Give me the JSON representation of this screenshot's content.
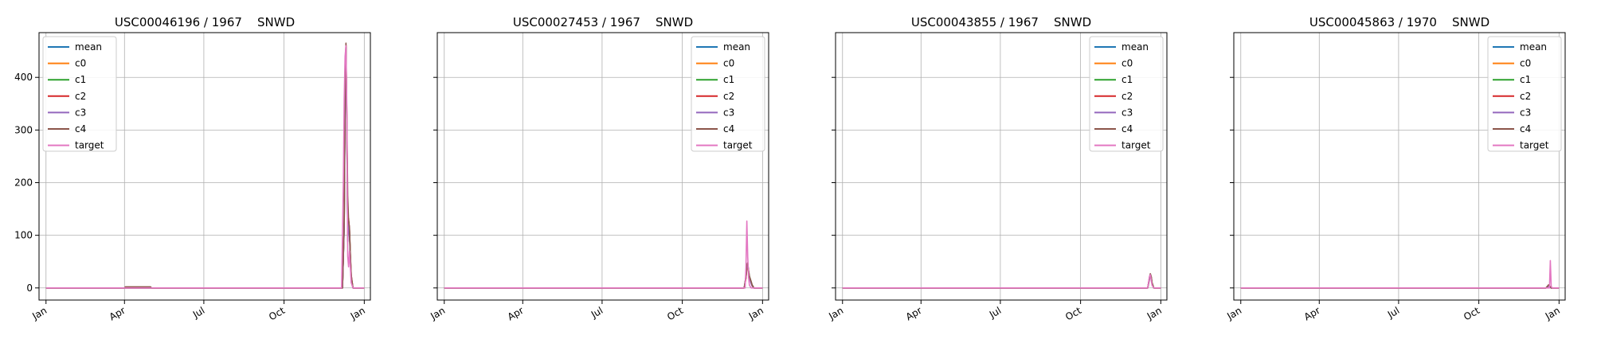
{
  "figure": {
    "legend_entries": [
      {
        "label": "mean",
        "color": "#1f77b4"
      },
      {
        "label": "c0",
        "color": "#ff7f0e"
      },
      {
        "label": "c1",
        "color": "#2ca02c"
      },
      {
        "label": "c2",
        "color": "#d62728"
      },
      {
        "label": "c3",
        "color": "#9467bd"
      },
      {
        "label": "c4",
        "color": "#8c564b"
      },
      {
        "label": "target",
        "color": "#e377c2"
      }
    ],
    "x_tick_labels": [
      "Jan",
      "Apr",
      "Jul",
      "Oct",
      "Jan"
    ],
    "y_tick_labels": [
      "0",
      "100",
      "200",
      "300",
      "400"
    ]
  },
  "chart_data": [
    {
      "type": "line",
      "title": "USC00046196 / 1967    SNWD",
      "x_unit": "day of year",
      "xlim": [
        -8,
        372
      ],
      "ylim": [
        -23,
        485
      ],
      "x_ticks": [
        0,
        90,
        181,
        273,
        365
      ],
      "y_ticks": [
        0,
        100,
        200,
        300,
        400
      ],
      "grid": true,
      "legend_position": "upper-left",
      "series": [
        {
          "name": "mean",
          "x": [
            0,
            340,
            342,
            343,
            344,
            345,
            346,
            347,
            348,
            349,
            350,
            352,
            355,
            365
          ],
          "y": [
            0,
            0,
            120,
            380,
            455,
            300,
            90,
            130,
            110,
            60,
            20,
            0,
            0,
            0
          ]
        },
        {
          "name": "c0",
          "x": [
            0,
            340,
            342,
            343,
            344,
            345,
            346,
            347,
            348,
            349,
            350,
            352,
            355,
            365
          ],
          "y": [
            0,
            0,
            125,
            385,
            460,
            310,
            95,
            128,
            105,
            58,
            18,
            0,
            0,
            0
          ]
        },
        {
          "name": "c1",
          "x": [
            0,
            340,
            342,
            343,
            344,
            345,
            346,
            347,
            348,
            349,
            350,
            352,
            355,
            365
          ],
          "y": [
            0,
            0,
            118,
            378,
            458,
            305,
            92,
            126,
            108,
            62,
            22,
            0,
            0,
            0
          ]
        },
        {
          "name": "c2",
          "x": [
            0,
            340,
            342,
            343,
            344,
            345,
            346,
            347,
            348,
            349,
            350,
            352,
            355,
            365
          ],
          "y": [
            0,
            0,
            122,
            382,
            462,
            315,
            100,
            132,
            112,
            64,
            24,
            0,
            0,
            0
          ]
        },
        {
          "name": "c3",
          "x": [
            0,
            340,
            342,
            343,
            344,
            345,
            346,
            347,
            348,
            349,
            350,
            352,
            355,
            365
          ],
          "y": [
            0,
            0,
            115,
            375,
            456,
            298,
            88,
            124,
            102,
            56,
            16,
            0,
            0,
            0
          ]
        },
        {
          "name": "c4",
          "x": [
            0,
            90,
            91,
            120,
            121,
            340,
            342,
            343,
            344,
            345,
            346,
            347,
            348,
            349,
            350,
            352,
            355,
            365
          ],
          "y": [
            0,
            0,
            2,
            2,
            0,
            0,
            130,
            390,
            465,
            320,
            175,
            128,
            115,
            65,
            25,
            0,
            0,
            0
          ]
        },
        {
          "name": "target",
          "x": [
            0,
            339,
            341,
            342,
            343,
            344,
            345,
            346,
            347,
            348,
            350,
            352,
            355,
            365
          ],
          "y": [
            0,
            0,
            200,
            360,
            440,
            460,
            340,
            60,
            40,
            70,
            10,
            0,
            0,
            0
          ]
        }
      ]
    },
    {
      "type": "line",
      "title": "USC00027453 / 1967    SNWD",
      "x_unit": "day of year",
      "xlim": [
        -8,
        372
      ],
      "ylim": [
        -23,
        485
      ],
      "x_ticks": [
        0,
        90,
        181,
        273,
        365
      ],
      "y_ticks": [
        0,
        100,
        200,
        300,
        400
      ],
      "grid": true,
      "legend_position": "upper-right",
      "series": [
        {
          "name": "mean",
          "x": [
            0,
            344,
            346,
            347,
            348,
            349,
            350,
            351,
            352,
            353,
            355,
            365
          ],
          "y": [
            0,
            0,
            20,
            40,
            45,
            30,
            20,
            15,
            10,
            5,
            0,
            0
          ]
        },
        {
          "name": "c0",
          "x": [
            0,
            344,
            346,
            347,
            348,
            349,
            350,
            351,
            352,
            353,
            355,
            365
          ],
          "y": [
            0,
            0,
            18,
            38,
            42,
            28,
            18,
            14,
            9,
            4,
            0,
            0
          ]
        },
        {
          "name": "c1",
          "x": [
            0,
            344,
            346,
            347,
            348,
            349,
            350,
            351,
            352,
            353,
            355,
            365
          ],
          "y": [
            0,
            0,
            22,
            42,
            46,
            32,
            22,
            16,
            11,
            6,
            0,
            0
          ]
        },
        {
          "name": "c2",
          "x": [
            0,
            344,
            346,
            347,
            348,
            349,
            350,
            351,
            352,
            353,
            355,
            365
          ],
          "y": [
            0,
            0,
            19,
            39,
            44,
            29,
            19,
            15,
            10,
            5,
            0,
            0
          ]
        },
        {
          "name": "c3",
          "x": [
            0,
            344,
            346,
            347,
            348,
            349,
            350,
            351,
            352,
            353,
            355,
            365
          ],
          "y": [
            0,
            0,
            21,
            41,
            43,
            31,
            21,
            13,
            8,
            4,
            0,
            0
          ]
        },
        {
          "name": "c4",
          "x": [
            0,
            344,
            346,
            347,
            348,
            349,
            350,
            351,
            352,
            353,
            355,
            365
          ],
          "y": [
            0,
            0,
            23,
            44,
            48,
            33,
            22,
            17,
            12,
            6,
            0,
            0
          ]
        },
        {
          "name": "target",
          "x": [
            0,
            345,
            346,
            347,
            348,
            349,
            350,
            352,
            365
          ],
          "y": [
            0,
            0,
            40,
            127,
            60,
            20,
            5,
            0,
            0
          ]
        }
      ]
    },
    {
      "type": "line",
      "title": "USC00043855 / 1967    SNWD",
      "x_unit": "day of year",
      "xlim": [
        -8,
        372
      ],
      "ylim": [
        -23,
        485
      ],
      "x_ticks": [
        0,
        90,
        181,
        273,
        365
      ],
      "y_ticks": [
        0,
        100,
        200,
        300,
        400
      ],
      "grid": true,
      "legend_position": "upper-right",
      "series": [
        {
          "name": "mean",
          "x": [
            0,
            350,
            352,
            353,
            354,
            355,
            357,
            365
          ],
          "y": [
            0,
            0,
            18,
            25,
            20,
            8,
            0,
            0
          ]
        },
        {
          "name": "c0",
          "x": [
            0,
            350,
            352,
            353,
            354,
            355,
            357,
            365
          ],
          "y": [
            0,
            0,
            17,
            24,
            19,
            7,
            0,
            0
          ]
        },
        {
          "name": "c1",
          "x": [
            0,
            350,
            352,
            353,
            354,
            355,
            357,
            365
          ],
          "y": [
            0,
            0,
            19,
            26,
            21,
            9,
            0,
            0
          ]
        },
        {
          "name": "c2",
          "x": [
            0,
            350,
            352,
            353,
            354,
            355,
            357,
            365
          ],
          "y": [
            0,
            0,
            18,
            25,
            20,
            8,
            0,
            0
          ]
        },
        {
          "name": "c3",
          "x": [
            0,
            350,
            352,
            353,
            354,
            355,
            357,
            365
          ],
          "y": [
            0,
            0,
            16,
            23,
            18,
            7,
            0,
            0
          ]
        },
        {
          "name": "c4",
          "x": [
            0,
            350,
            352,
            353,
            354,
            355,
            357,
            365
          ],
          "y": [
            0,
            0,
            20,
            27,
            22,
            10,
            0,
            0
          ]
        },
        {
          "name": "target",
          "x": [
            0,
            350,
            352,
            353,
            354,
            355,
            357,
            365
          ],
          "y": [
            0,
            0,
            22,
            25,
            15,
            5,
            0,
            0
          ]
        }
      ]
    },
    {
      "type": "line",
      "title": "USC00045863 / 1970    SNWD",
      "x_unit": "day of year",
      "xlim": [
        -8,
        372
      ],
      "ylim": [
        -23,
        485
      ],
      "x_ticks": [
        0,
        90,
        181,
        273,
        365
      ],
      "y_ticks": [
        0,
        100,
        200,
        300,
        400
      ],
      "grid": true,
      "legend_position": "upper-right",
      "series": [
        {
          "name": "mean",
          "x": [
            0,
            350,
            352,
            353,
            354,
            356,
            365
          ],
          "y": [
            0,
            0,
            3,
            5,
            3,
            0,
            0
          ]
        },
        {
          "name": "c0",
          "x": [
            0,
            350,
            352,
            353,
            354,
            356,
            365
          ],
          "y": [
            0,
            0,
            3,
            4,
            3,
            0,
            0
          ]
        },
        {
          "name": "c1",
          "x": [
            0,
            350,
            352,
            353,
            354,
            356,
            365
          ],
          "y": [
            0,
            0,
            2,
            5,
            2,
            0,
            0
          ]
        },
        {
          "name": "c2",
          "x": [
            0,
            350,
            352,
            353,
            354,
            356,
            365
          ],
          "y": [
            0,
            0,
            3,
            5,
            3,
            0,
            0
          ]
        },
        {
          "name": "c3",
          "x": [
            0,
            350,
            352,
            353,
            354,
            356,
            365
          ],
          "y": [
            0,
            0,
            2,
            4,
            2,
            0,
            0
          ]
        },
        {
          "name": "c4",
          "x": [
            0,
            350,
            352,
            353,
            354,
            356,
            365
          ],
          "y": [
            0,
            0,
            4,
            6,
            4,
            0,
            0
          ]
        },
        {
          "name": "target",
          "x": [
            0,
            354,
            355,
            356,
            357,
            365
          ],
          "y": [
            0,
            0,
            52,
            3,
            0,
            0
          ]
        }
      ]
    }
  ]
}
